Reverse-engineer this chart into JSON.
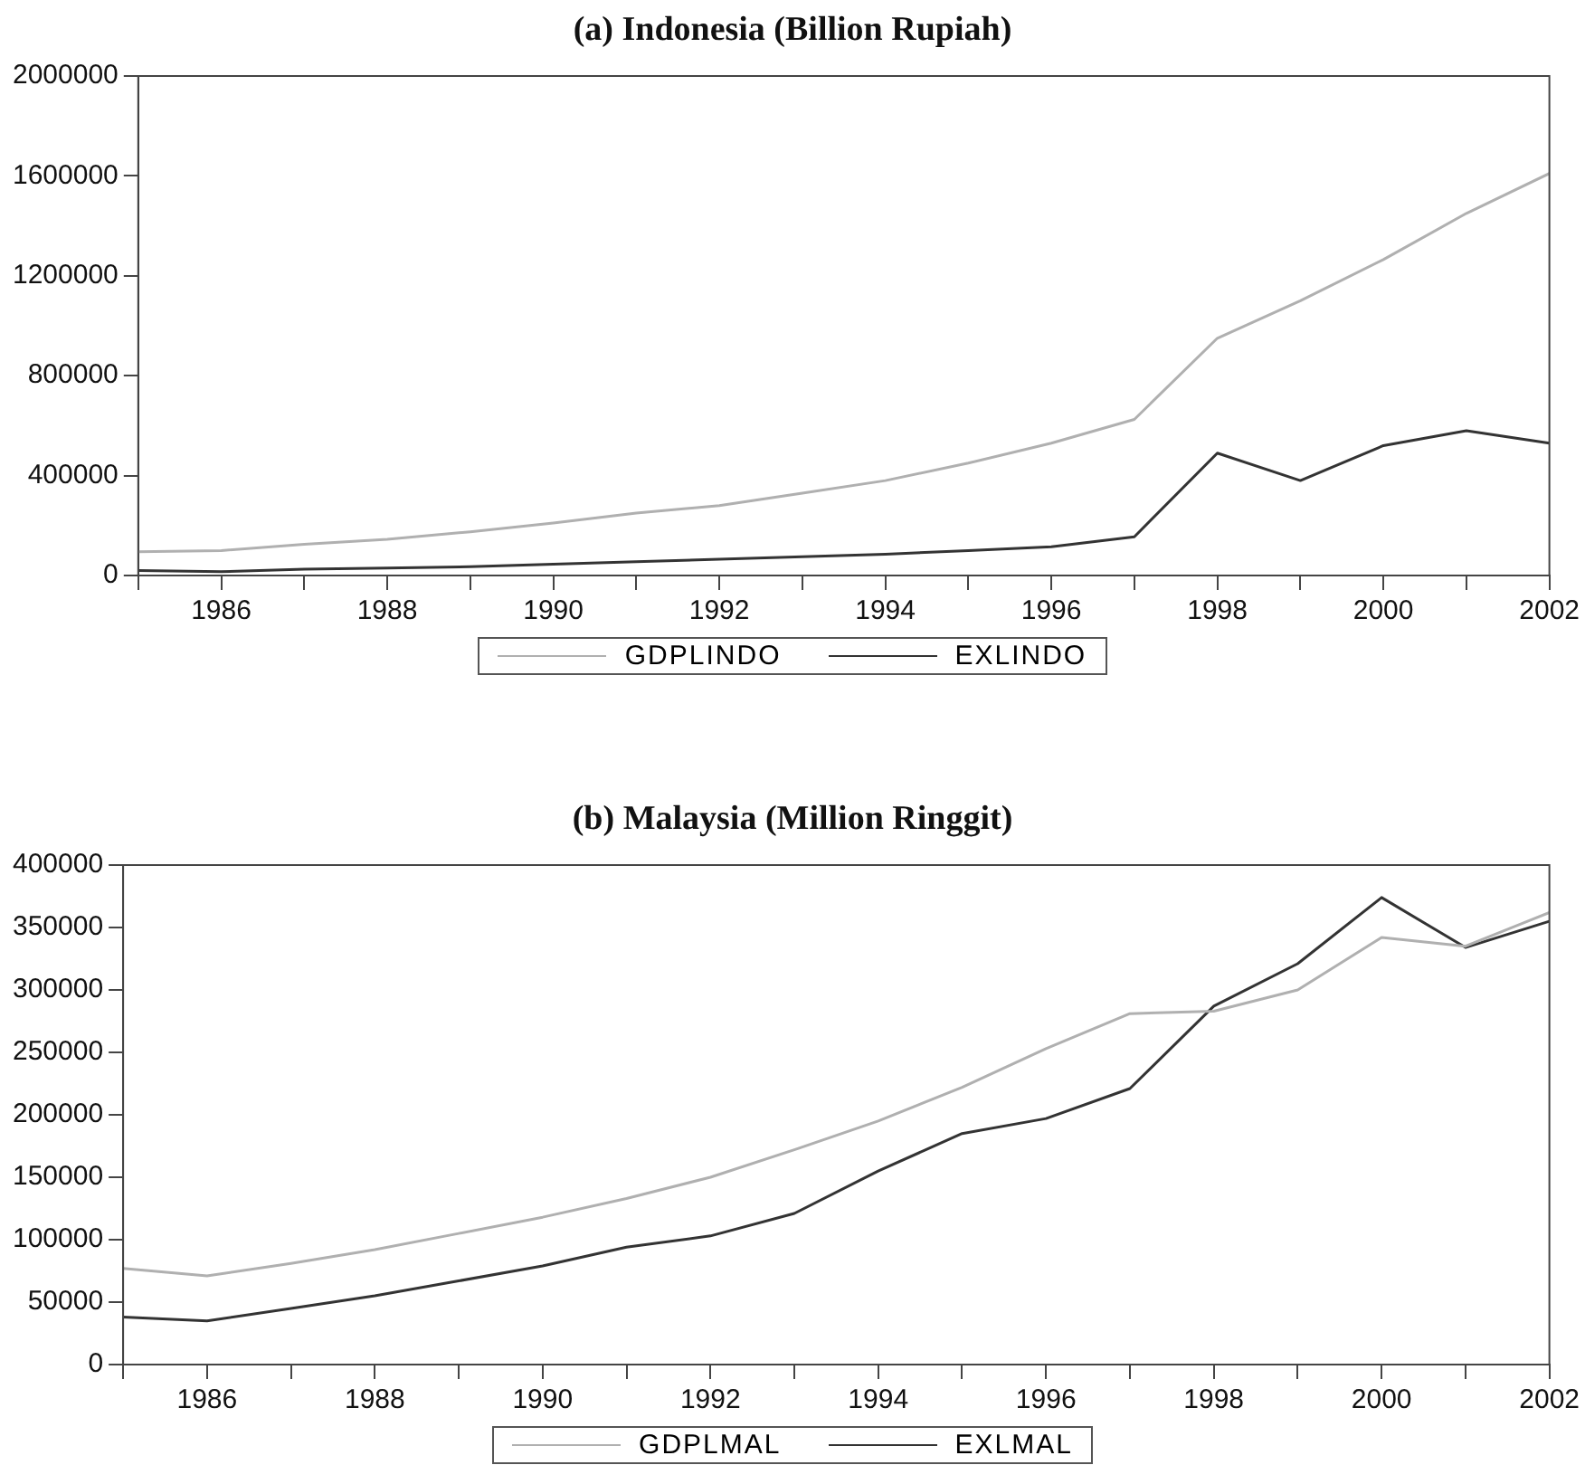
{
  "chart_data": [
    {
      "type": "line",
      "title": "(a) Indonesia (Billion Rupiah)",
      "x": [
        1985,
        1986,
        1987,
        1988,
        1989,
        1990,
        1991,
        1992,
        1993,
        1994,
        1995,
        1996,
        1997,
        1998,
        1999,
        2000,
        2001,
        2002
      ],
      "series": [
        {
          "name": "GDPLINDO",
          "color": "#b0b0b0",
          "values": [
            95000,
            100000,
            125000,
            145000,
            175000,
            210000,
            250000,
            280000,
            330000,
            380000,
            450000,
            530000,
            625000,
            950000,
            1100000,
            1265000,
            1450000,
            1610000
          ]
        },
        {
          "name": "EXLINDO",
          "color": "#333333",
          "values": [
            20000,
            15000,
            25000,
            30000,
            35000,
            45000,
            55000,
            65000,
            75000,
            85000,
            100000,
            115000,
            155000,
            490000,
            380000,
            520000,
            580000,
            530000
          ]
        }
      ],
      "xlim": [
        1985,
        2002
      ],
      "xticks": [
        {
          "value": 1985,
          "label": null
        },
        1986,
        {
          "value": 1987,
          "label": null
        },
        1988,
        {
          "value": 1989,
          "label": null
        },
        1990,
        {
          "value": 1991,
          "label": null
        },
        1992,
        {
          "value": 1993,
          "label": null
        },
        1994,
        {
          "value": 1995,
          "label": null
        },
        1996,
        {
          "value": 1997,
          "label": null
        },
        1998,
        {
          "value": 1999,
          "label": null
        },
        2000,
        {
          "value": 2001,
          "label": null
        },
        2002
      ],
      "ylim": [
        0,
        2000000
      ],
      "yticks": [
        0,
        400000,
        800000,
        1200000,
        1600000,
        2000000
      ],
      "grid": false,
      "legend": "bottom",
      "marker": "none",
      "line_style": "solid"
    },
    {
      "type": "line",
      "title": "(b) Malaysia (Million Ringgit)",
      "x": [
        1985,
        1986,
        1987,
        1988,
        1989,
        1990,
        1991,
        1992,
        1993,
        1994,
        1995,
        1996,
        1997,
        1998,
        1999,
        2000,
        2001,
        2002
      ],
      "series": [
        {
          "name": "GDPLMAL",
          "color": "#b0b0b0",
          "values": [
            77000,
            71000,
            81000,
            92000,
            105000,
            118000,
            133000,
            150000,
            172000,
            195000,
            222000,
            253000,
            281000,
            283000,
            300000,
            342000,
            335000,
            362000
          ]
        },
        {
          "name": "EXLMAL",
          "color": "#333333",
          "values": [
            38000,
            35000,
            45000,
            55000,
            67000,
            79000,
            94000,
            103000,
            121000,
            155000,
            185000,
            197000,
            221000,
            287000,
            321000,
            374000,
            334000,
            355000
          ]
        }
      ],
      "xlim": [
        1985,
        2002
      ],
      "xticks": [
        {
          "value": 1985,
          "label": null
        },
        1986,
        {
          "value": 1987,
          "label": null
        },
        1988,
        {
          "value": 1989,
          "label": null
        },
        1990,
        {
          "value": 1991,
          "label": null
        },
        1992,
        {
          "value": 1993,
          "label": null
        },
        1994,
        {
          "value": 1995,
          "label": null
        },
        1996,
        {
          "value": 1997,
          "label": null
        },
        1998,
        {
          "value": 1999,
          "label": null
        },
        2000,
        {
          "value": 2001,
          "label": null
        },
        2002
      ],
      "ylim": [
        0,
        400000
      ],
      "yticks": [
        0,
        50000,
        100000,
        150000,
        200000,
        250000,
        300000,
        350000,
        400000
      ],
      "grid": false,
      "legend": "bottom",
      "marker": "none",
      "line_style": "solid"
    }
  ]
}
